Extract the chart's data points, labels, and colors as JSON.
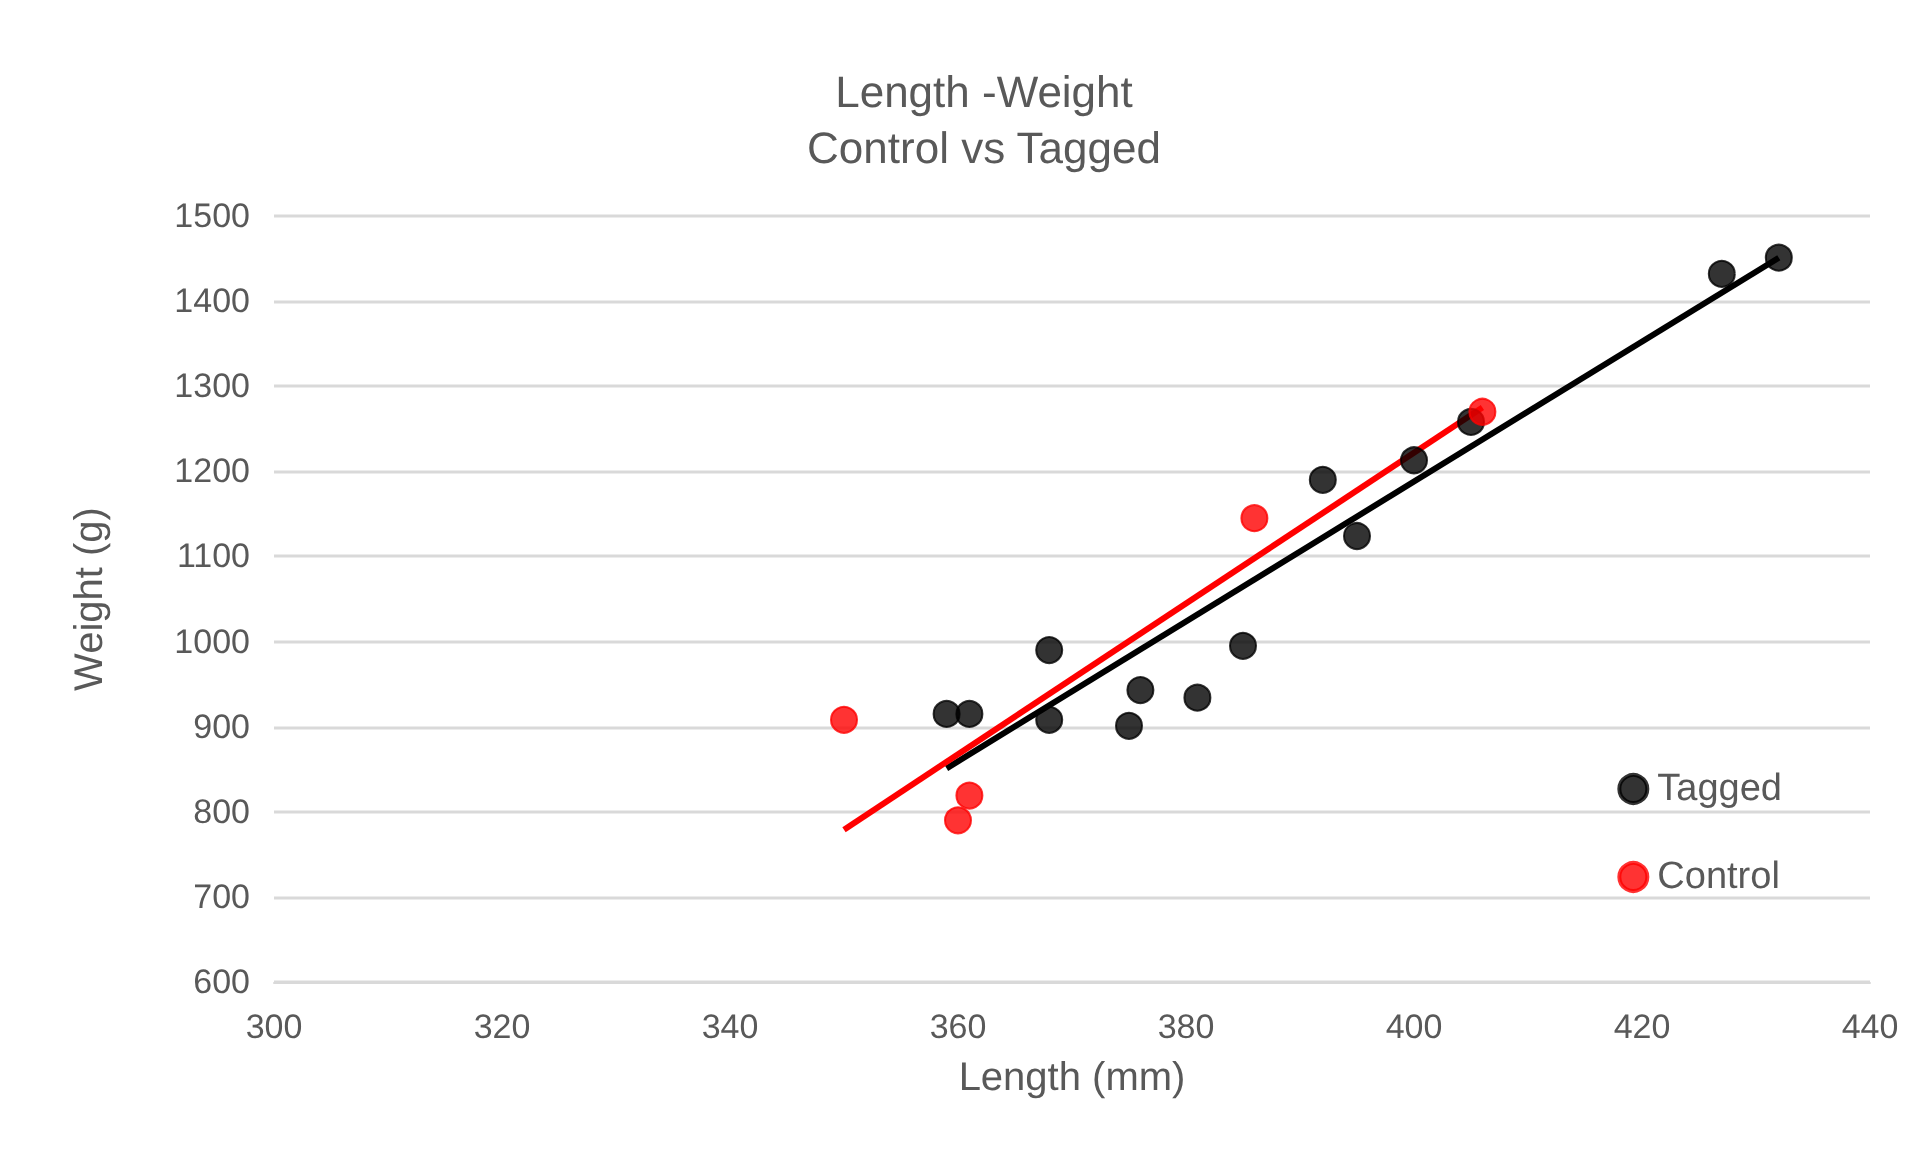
{
  "chart_data": {
    "type": "scatter",
    "title": "Length -Weight",
    "subtitle": "Control vs Tagged",
    "xlabel": "Length (mm)",
    "ylabel": "Weight (g)",
    "xlim": [
      300,
      440
    ],
    "xticks": [
      300,
      320,
      340,
      360,
      380,
      400,
      420,
      440
    ],
    "ylim": [
      600,
      1500
    ],
    "yticks": [
      600,
      700,
      800,
      900,
      1000,
      1100,
      1200,
      1300,
      1400,
      1500
    ],
    "grid": "y",
    "legend": "right",
    "series": [
      {
        "name": "Tagged",
        "color": "#000000",
        "marker": "circle",
        "x": [
          359,
          361,
          368,
          368,
          375,
          376,
          381,
          385,
          392,
          395,
          400,
          405,
          427,
          432
        ],
        "values": [
          915,
          915,
          990,
          908,
          901,
          943,
          934,
          995,
          1190,
          1124,
          1213,
          1258,
          1432,
          1451
        ]
      },
      {
        "name": "Control",
        "color": "#ff0000",
        "marker": "circle",
        "x": [
          350,
          360,
          361,
          386,
          406
        ],
        "values": [
          908,
          790,
          819,
          1145,
          1270
        ]
      },
      {
        "type": "line",
        "color": "#000000",
        "marker": "none",
        "x": [
          359,
          432
        ],
        "values": [
          851,
          1451
        ]
      },
      {
        "type": "line",
        "color": "#ff0000",
        "marker": "none",
        "x": [
          350,
          406
        ],
        "values": [
          779,
          1275
        ]
      }
    ]
  }
}
